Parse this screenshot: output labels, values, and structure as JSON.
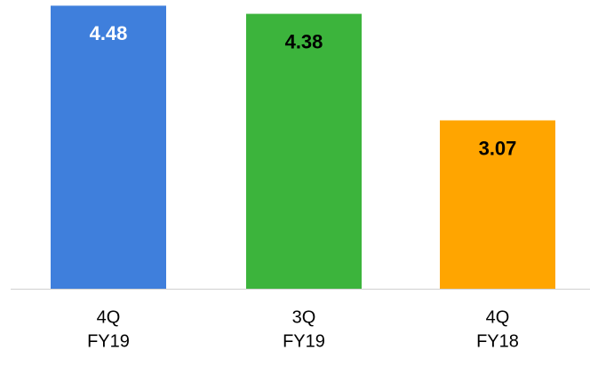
{
  "chart_data": {
    "type": "bar",
    "categories": [
      [
        "4Q",
        "FY19"
      ],
      [
        "3Q",
        "FY19"
      ],
      [
        "4Q",
        "FY18"
      ]
    ],
    "values": [
      4.48,
      4.38,
      3.07
    ],
    "colors": [
      "#3f7fdc",
      "#3cb43c",
      "#ffa500"
    ],
    "label_colors": [
      "#ffffff",
      "#000000",
      "#000000"
    ],
    "ylim": [
      1,
      4.55
    ]
  }
}
